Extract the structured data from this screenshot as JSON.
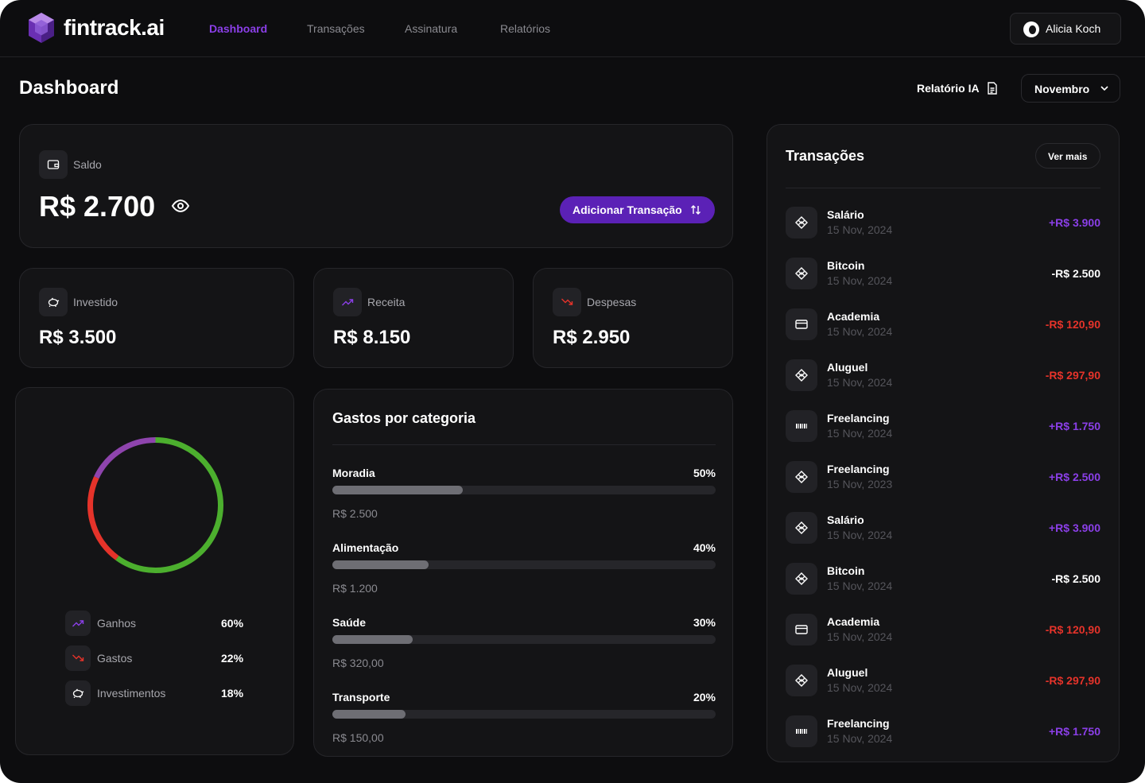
{
  "app": {
    "brand": "fintrack.ai"
  },
  "nav": {
    "links": [
      "Dashboard",
      "Transações",
      "Assinatura",
      "Relatórios"
    ],
    "active": "Dashboard"
  },
  "user": {
    "name": "Alicia Koch"
  },
  "header": {
    "title": "Dashboard",
    "report_label": "Relatório IA",
    "month": "Novembro"
  },
  "balance": {
    "label": "Saldo",
    "value": "R$ 2.700",
    "add_button": "Adicionar Transação"
  },
  "summary": [
    {
      "label": "Investido",
      "value": "R$ 3.500",
      "icon": "piggy-bank-icon"
    },
    {
      "label": "Receita",
      "value": "R$ 8.150",
      "icon": "trending-up-icon"
    },
    {
      "label": "Despesas",
      "value": "R$ 2.950",
      "icon": "trending-down-icon"
    }
  ],
  "distribution": {
    "items": [
      {
        "name": "Ganhos",
        "pct": "60%",
        "value": 60,
        "color": "#4caf2e",
        "icon": "trending-up-icon"
      },
      {
        "name": "Gastos",
        "pct": "22%",
        "value": 22,
        "color": "#e5332a",
        "icon": "trending-down-icon"
      },
      {
        "name": "Investimentos",
        "pct": "18%",
        "value": 18,
        "color": "#8e44ad",
        "icon": "piggy-bank-icon"
      }
    ]
  },
  "categories": {
    "title": "Gastos por categoria",
    "items": [
      {
        "name": "Moradia",
        "pct": "50%",
        "amount": "R$ 2.500",
        "fill": 0.34
      },
      {
        "name": "Alimentação",
        "pct": "40%",
        "amount": "R$ 1.200",
        "fill": 0.25
      },
      {
        "name": "Saúde",
        "pct": "30%",
        "amount": "R$ 320,00",
        "fill": 0.21
      },
      {
        "name": "Transporte",
        "pct": "20%",
        "amount": "R$ 150,00",
        "fill": 0.19
      }
    ]
  },
  "transactions": {
    "title": "Transações",
    "more_label": "Ver mais",
    "items": [
      {
        "name": "Salário",
        "date": "15 Nov, 2024",
        "amount": "+R$ 3.900",
        "kind": "pos",
        "icon": "pix-icon"
      },
      {
        "name": "Bitcoin",
        "date": "15 Nov, 2024",
        "amount": "-R$ 2.500",
        "kind": "neu",
        "icon": "pix-icon"
      },
      {
        "name": "Academia",
        "date": "15 Nov, 2024",
        "amount": "-R$ 120,90",
        "kind": "neg",
        "icon": "credit-card-icon"
      },
      {
        "name": "Aluguel",
        "date": "15 Nov, 2024",
        "amount": "-R$ 297,90",
        "kind": "neg",
        "icon": "pix-icon"
      },
      {
        "name": "Freelancing",
        "date": "15 Nov, 2024",
        "amount": "+R$ 1.750",
        "kind": "pos",
        "icon": "barcode-icon"
      },
      {
        "name": "Freelancing",
        "date": "15 Nov, 2023",
        "amount": "+R$ 2.500",
        "kind": "pos",
        "icon": "pix-icon"
      },
      {
        "name": "Salário",
        "date": "15 Nov, 2024",
        "amount": "+R$ 3.900",
        "kind": "pos",
        "icon": "pix-icon"
      },
      {
        "name": "Bitcoin",
        "date": "15 Nov, 2024",
        "amount": "-R$ 2.500",
        "kind": "neu",
        "icon": "pix-icon"
      },
      {
        "name": "Academia",
        "date": "15 Nov, 2024",
        "amount": "-R$ 120,90",
        "kind": "neg",
        "icon": "credit-card-icon"
      },
      {
        "name": "Aluguel",
        "date": "15 Nov, 2024",
        "amount": "-R$ 297,90",
        "kind": "neg",
        "icon": "pix-icon"
      },
      {
        "name": "Freelancing",
        "date": "15 Nov, 2024",
        "amount": "+R$ 1.750",
        "kind": "pos",
        "icon": "barcode-icon"
      }
    ]
  },
  "colors": {
    "accent": "#8b3fe8",
    "button": "#5b21b6",
    "negative": "#e5332a",
    "positive": "#4caf2e"
  }
}
